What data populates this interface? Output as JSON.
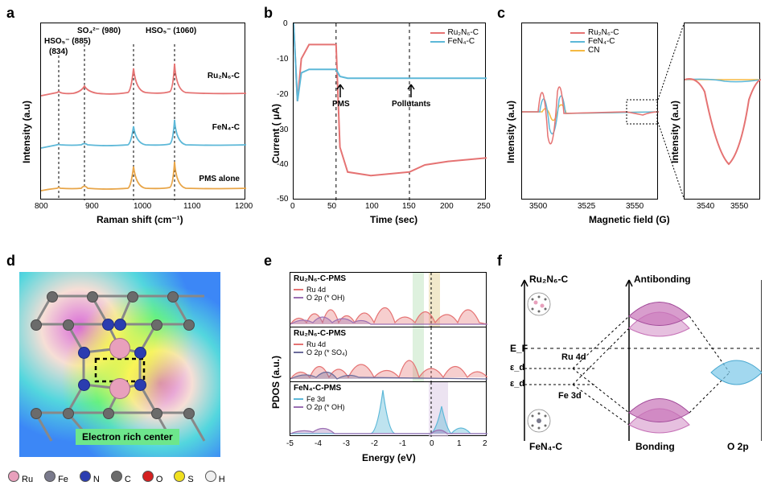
{
  "panels": {
    "a": {
      "label": "a"
    },
    "b": {
      "label": "b"
    },
    "c": {
      "label": "c"
    },
    "d": {
      "label": "d"
    },
    "e": {
      "label": "e"
    },
    "f": {
      "label": "f"
    }
  },
  "chart_a": {
    "type": "line",
    "xlabel": "Raman shift (cm⁻¹)",
    "ylabel": "Intensity (a.u)",
    "xlim": [
      800,
      1200
    ],
    "xticks": [
      800,
      900,
      1000,
      1100,
      1200
    ],
    "annotations": {
      "hso5_834": "(834)",
      "hso5_885": "HSO₅⁻ (885)",
      "so4_980": "SO₄²⁻ (980)",
      "hso5_1060": "HSO₅⁻ (1060)"
    },
    "series": [
      {
        "name": "Ru₂N₆-C",
        "color": "#e57373",
        "offset": 2
      },
      {
        "name": "FeN₄-C",
        "color": "#5db8d8",
        "offset": 1
      },
      {
        "name": "PMS alone",
        "color": "#e8a548",
        "offset": 0
      }
    ],
    "peak_positions": [
      834,
      885,
      980,
      1060
    ]
  },
  "chart_b": {
    "type": "line",
    "xlabel": "Time (sec)",
    "ylabel": "Current ( μA)",
    "xlim": [
      0,
      250
    ],
    "ylim": [
      -50,
      0
    ],
    "xticks": [
      0,
      50,
      100,
      150,
      200,
      250
    ],
    "yticks": [
      -50,
      -40,
      -30,
      -20,
      -10,
      0
    ],
    "annotations": {
      "pms": "PMS",
      "pollutants": "Pollutants"
    },
    "vlines": [
      55,
      150
    ],
    "series": [
      {
        "name": "Ru₂N₆-C",
        "color": "#e57373",
        "data": [
          [
            0,
            0
          ],
          [
            5,
            -22
          ],
          [
            10,
            -10
          ],
          [
            20,
            -6
          ],
          [
            55,
            -6
          ],
          [
            60,
            -35
          ],
          [
            70,
            -42
          ],
          [
            100,
            -43
          ],
          [
            150,
            -42
          ],
          [
            170,
            -40
          ],
          [
            200,
            -39
          ],
          [
            250,
            -38
          ]
        ]
      },
      {
        "name": "FeN₄-C",
        "color": "#5db8d8",
        "data": [
          [
            0,
            0
          ],
          [
            5,
            -22
          ],
          [
            10,
            -14
          ],
          [
            20,
            -13
          ],
          [
            55,
            -13
          ],
          [
            60,
            -15
          ],
          [
            70,
            -15.5
          ],
          [
            150,
            -15.5
          ],
          [
            250,
            -15.5
          ]
        ]
      }
    ]
  },
  "chart_c": {
    "type": "line",
    "xlabel": "Magnetic field (G)",
    "ylabel": "Intensity (a.u)",
    "main_xlim": [
      3490,
      3560
    ],
    "main_xticks": [
      3500,
      3525,
      3550
    ],
    "zoom_xlim": [
      3530,
      3560
    ],
    "zoom_xticks": [
      3540,
      3550
    ],
    "series": [
      {
        "name": "Ru₂N₆-C",
        "color": "#e57373"
      },
      {
        "name": "FeN₄-C",
        "color": "#5db8d8"
      },
      {
        "name": "CN",
        "color": "#f5b942"
      }
    ]
  },
  "panel_d": {
    "type": "infographic",
    "label_text": "Electron rich center",
    "label_bg": "#6de68c",
    "colors": {
      "ru": "#e8a0bc",
      "fe": "#7a7a8c",
      "n": "#2b3db0",
      "c": "#6b6b6b"
    },
    "bg_colors": [
      "#d42828",
      "#f5d020",
      "#3ac44a",
      "#2050d0"
    ]
  },
  "chart_e": {
    "type": "line",
    "xlabel": "Energy (eV)",
    "ylabel": "PDOS (a.u.)",
    "xlim": [
      -5,
      2
    ],
    "xticks": [
      -5,
      -4,
      -3,
      -2,
      -1,
      0,
      1,
      2
    ],
    "subpanels": [
      {
        "title": "Ru₂N₆-C-PMS",
        "series": [
          {
            "name": "Ru 4d",
            "color": "#e57373"
          },
          {
            "name": "O 2p (* OH)",
            "color": "#9b6fb3"
          }
        ]
      },
      {
        "title": "Ru₂N₆-C-PMS",
        "series": [
          {
            "name": "Ru 4d",
            "color": "#e57373"
          },
          {
            "name": "O 2p (* SO₄)",
            "color": "#6b6b9b"
          }
        ]
      },
      {
        "title": "FeN₄-C-PMS",
        "series": [
          {
            "name": "Fe 3d",
            "color": "#5db8d8"
          },
          {
            "name": "O 2p (* OH)",
            "color": "#9b6fb3"
          }
        ]
      }
    ],
    "highlight_colors": [
      "#c8e8c8",
      "#e8d8a8"
    ]
  },
  "panel_f": {
    "type": "diagram",
    "labels": {
      "top_left": "Ru₂N₆-C",
      "top_right": "Antibonding",
      "ef": "E_F",
      "ed1": "ε_d",
      "ed2": "ε_d",
      "ru4d": "Ru 4d",
      "fe3d": "Fe 3d",
      "bottom_left": "FeN₄-C",
      "bonding": "Bonding",
      "o2p": "O 2p"
    },
    "colors": {
      "lobe_main": "#c773b8",
      "lobe_right": "#7ac8e8"
    }
  },
  "atom_legend": [
    {
      "name": "Ru",
      "color": "#e8a0bc"
    },
    {
      "name": "Fe",
      "color": "#7a7a8c"
    },
    {
      "name": "N",
      "color": "#2b3db0"
    },
    {
      "name": "C",
      "color": "#6b6b6b"
    },
    {
      "name": "O",
      "color": "#d42020"
    },
    {
      "name": "S",
      "color": "#f0e020"
    },
    {
      "name": "H",
      "color": "#f0f0f0"
    }
  ]
}
